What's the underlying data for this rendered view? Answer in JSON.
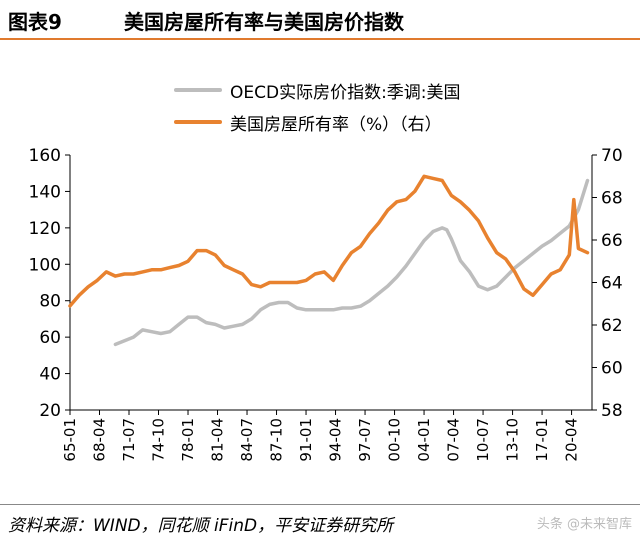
{
  "header": {
    "figure_number": "图表9",
    "title": "美国房屋所有率与美国房价指数"
  },
  "footer": {
    "source": "资料来源：WIND，同花顺 iFinD，平安证券研究所",
    "watermark": "头条 @未来智库"
  },
  "colors": {
    "accent": "#e07a2e",
    "hpi": "#bdbdbd",
    "ownership": "#e8822f"
  },
  "chart_data": {
    "type": "line",
    "title": "",
    "xlabel": "",
    "ylabel": "",
    "x_ticks": [
      "65-01",
      "68-04",
      "71-07",
      "74-10",
      "78-01",
      "81-04",
      "84-07",
      "87-10",
      "91-01",
      "94-04",
      "97-07",
      "00-10",
      "04-01",
      "07-04",
      "10-07",
      "13-10",
      "17-01",
      "20-04"
    ],
    "x_range": [
      1965.0,
      2022.5
    ],
    "ylim_left": [
      20,
      160
    ],
    "left_ticks": [
      20,
      40,
      60,
      80,
      100,
      120,
      140,
      160
    ],
    "ylim_right": [
      58,
      70
    ],
    "right_ticks": [
      58,
      60,
      62,
      64,
      66,
      68,
      70
    ],
    "grid": false,
    "legend_position": "top-center",
    "series": [
      {
        "name": "OECD实际房价指数:季调:美国",
        "axis": "left",
        "color": "#bdbdbd",
        "x": [
          1970.0,
          1971.0,
          1972.0,
          1973.0,
          1974.0,
          1975.0,
          1976.0,
          1977.0,
          1978.0,
          1979.0,
          1980.0,
          1981.0,
          1982.0,
          1983.0,
          1984.0,
          1985.0,
          1986.0,
          1987.0,
          1988.0,
          1989.0,
          1990.0,
          1991.0,
          1992.0,
          1993.0,
          1994.0,
          1995.0,
          1996.0,
          1997.0,
          1998.0,
          1999.0,
          2000.0,
          2001.0,
          2002.0,
          2003.0,
          2004.0,
          2005.0,
          2006.0,
          2006.5,
          2007.0,
          2008.0,
          2009.0,
          2010.0,
          2011.0,
          2012.0,
          2013.0,
          2014.0,
          2015.0,
          2016.0,
          2017.0,
          2018.0,
          2019.0,
          2020.0,
          2021.0,
          2022.0
        ],
        "y": [
          56,
          58,
          60,
          64,
          63,
          62,
          63,
          67,
          71,
          71,
          68,
          67,
          65,
          66,
          67,
          70,
          75,
          78,
          79,
          79,
          76,
          75,
          75,
          75,
          75,
          76,
          76,
          77,
          80,
          84,
          88,
          93,
          99,
          106,
          113,
          118,
          120,
          119,
          114,
          102,
          96,
          88,
          86,
          88,
          93,
          98,
          102,
          106,
          110,
          113,
          117,
          121,
          130,
          146
        ]
      },
      {
        "name": "美国房屋所有率（%）（右）",
        "axis": "right",
        "color": "#e8822f",
        "x": [
          1965.0,
          1966.0,
          1967.0,
          1968.0,
          1969.0,
          1970.0,
          1971.0,
          1972.0,
          1973.0,
          1974.0,
          1975.0,
          1976.0,
          1977.0,
          1978.0,
          1979.0,
          1980.0,
          1981.0,
          1982.0,
          1983.0,
          1984.0,
          1985.0,
          1986.0,
          1987.0,
          1988.0,
          1989.0,
          1990.0,
          1991.0,
          1992.0,
          1993.0,
          1994.0,
          1995.0,
          1996.0,
          1997.0,
          1998.0,
          1999.0,
          2000.0,
          2001.0,
          2002.0,
          2003.0,
          2004.0,
          2005.0,
          2006.0,
          2007.0,
          2008.0,
          2009.0,
          2010.0,
          2011.0,
          2012.0,
          2013.0,
          2014.0,
          2015.0,
          2016.0,
          2017.0,
          2018.0,
          2019.0,
          2020.0,
          2020.5,
          2021.0,
          2022.0
        ],
        "y": [
          62.9,
          63.4,
          63.8,
          64.1,
          64.5,
          64.3,
          64.4,
          64.4,
          64.5,
          64.6,
          64.6,
          64.7,
          64.8,
          65.0,
          65.5,
          65.5,
          65.3,
          64.8,
          64.6,
          64.4,
          63.9,
          63.8,
          64.0,
          64.0,
          64.0,
          64.0,
          64.1,
          64.4,
          64.5,
          64.1,
          64.8,
          65.4,
          65.7,
          66.3,
          66.8,
          67.4,
          67.8,
          67.9,
          68.3,
          69.0,
          68.9,
          68.8,
          68.1,
          67.8,
          67.4,
          66.9,
          66.1,
          65.4,
          65.1,
          64.5,
          63.7,
          63.4,
          63.9,
          64.4,
          64.6,
          65.3,
          67.9,
          65.6,
          65.4
        ]
      }
    ]
  }
}
